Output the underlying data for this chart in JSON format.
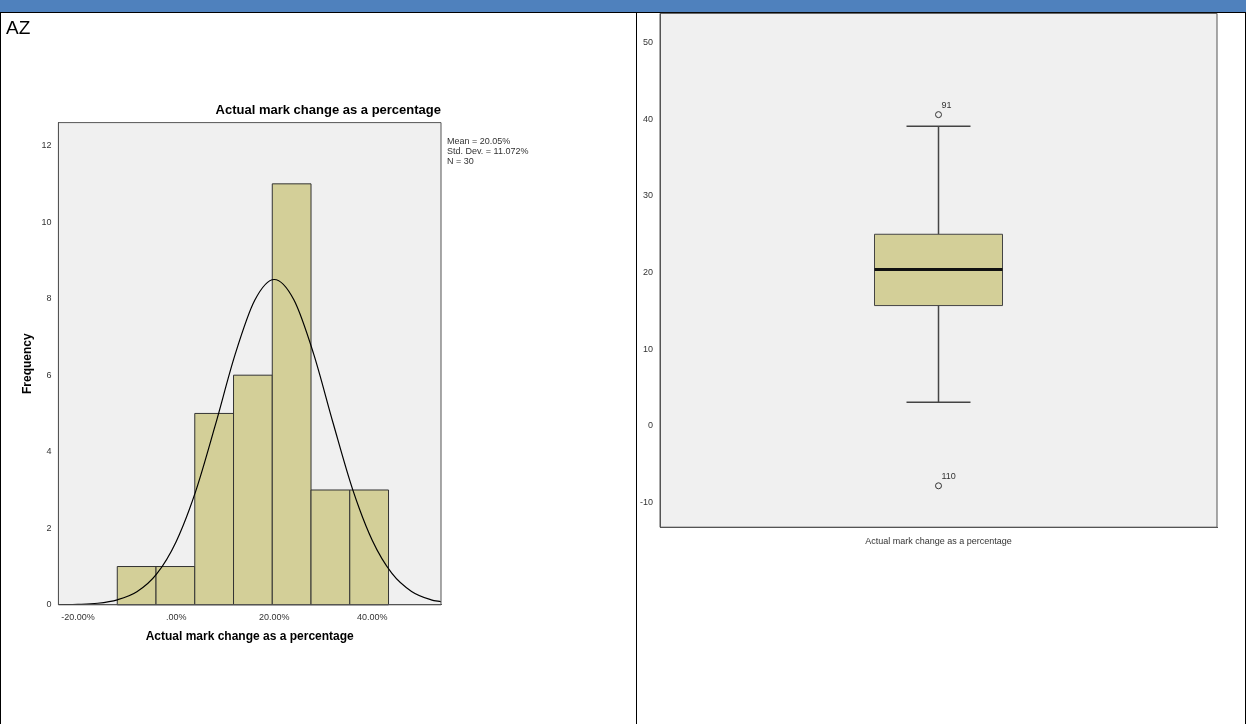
{
  "chart_data": [
    {
      "type": "histogram",
      "title": "Actual mark change as a percentage",
      "xlabel": "Actual mark change as a percentage",
      "ylabel": "Frequency",
      "bins": [
        -12,
        -4.1,
        3.8,
        11.7,
        19.6,
        27.5,
        35.4,
        43.3
      ],
      "values": [
        1,
        1,
        5,
        6,
        11,
        3,
        3
      ],
      "color": "#d3cf98",
      "series": [
        {
          "type": "line",
          "color": "#000000",
          "x": [
            -24,
            -20,
            -16,
            -12,
            -8,
            -4,
            0,
            4,
            8,
            12,
            16,
            20,
            24,
            28,
            32,
            36,
            40,
            44,
            48,
            52,
            54
          ],
          "values": [
            0,
            0.01,
            0.04,
            0.13,
            0.34,
            0.8,
            1.65,
            2.97,
            4.7,
            6.53,
            7.95,
            8.5,
            7.97,
            6.57,
            4.75,
            3.01,
            1.68,
            0.82,
            0.35,
            0.13,
            0.08
          ]
        }
      ],
      "xlim": [
        -24,
        54
      ],
      "xticks": [
        {
          "value": -20,
          "label": "-20.00%"
        },
        {
          "value": 0,
          "label": ".00%"
        },
        {
          "value": 20,
          "label": "20.00%"
        },
        {
          "value": 40,
          "label": "40.00%"
        }
      ],
      "ylim": [
        0,
        12.6
      ],
      "yticks": [
        0,
        2,
        4,
        6,
        8,
        10,
        12
      ],
      "grid": false,
      "annotations": [
        "AZ",
        "Mean = 20.05%",
        "Std. Dev. = 11.072%",
        "N = 30"
      ]
    },
    {
      "type": "box",
      "categories": [
        "Actual mark change as a percentage"
      ],
      "color": "#d3cf98",
      "boxes": [
        {
          "low": 3.1,
          "q1": 15.7,
          "median": 20.4,
          "q3": 25.0,
          "high": 39.1,
          "outliers": [
            40.6,
            -7.8
          ]
        }
      ],
      "ylim": [
        -13.2,
        53.8
      ],
      "yticks": [
        -10,
        0,
        10,
        20,
        30,
        40,
        50
      ],
      "grid": false,
      "annotations": [
        "91",
        "110"
      ]
    }
  ]
}
